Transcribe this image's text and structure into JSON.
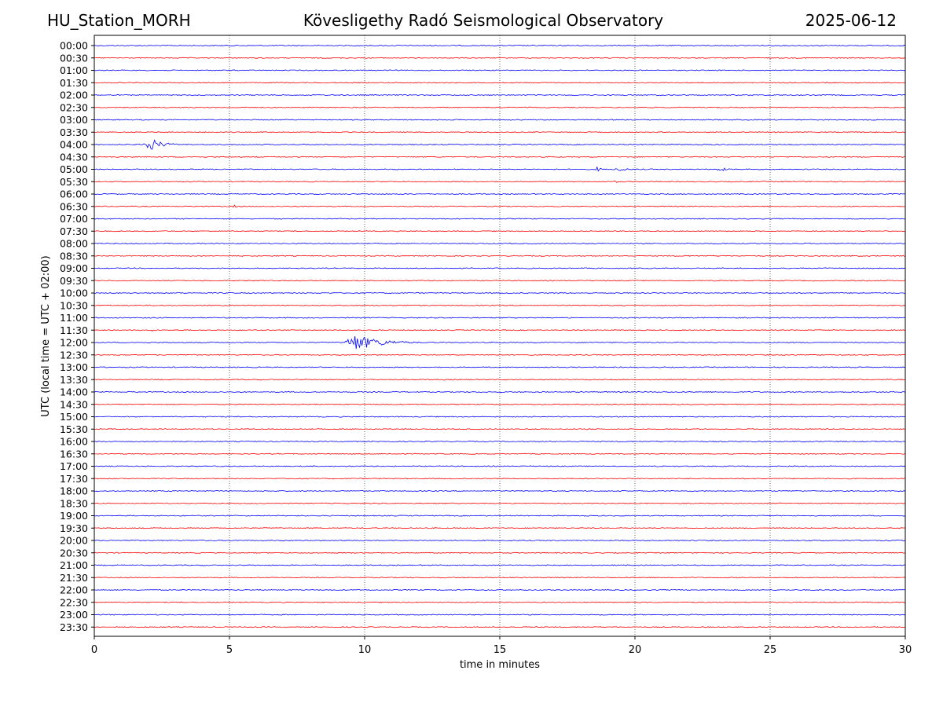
{
  "header": {
    "station": "HU_Station_MORH",
    "title": "Kövesligethy Radó Seismological Observatory",
    "date": "2025-06-12"
  },
  "chart_data": {
    "type": "line",
    "subtype": "helicorder",
    "xlabel": "time in minutes",
    "ylabel": "UTC (local time = UTC + 02:00)",
    "xlim": [
      0,
      30
    ],
    "x_ticks": [
      "0",
      "5",
      "10",
      "15",
      "20",
      "25",
      "30"
    ],
    "grid": "vertical dotted lines at 5, 10, 15, 20, 25 minutes",
    "rows": [
      "00:00",
      "00:30",
      "01:00",
      "01:30",
      "02:00",
      "02:30",
      "03:00",
      "03:30",
      "04:00",
      "04:30",
      "05:00",
      "05:30",
      "06:00",
      "06:30",
      "07:00",
      "07:30",
      "08:00",
      "08:30",
      "09:00",
      "09:30",
      "10:00",
      "10:30",
      "11:00",
      "11:30",
      "12:00",
      "12:30",
      "13:00",
      "13:30",
      "14:00",
      "14:30",
      "15:00",
      "15:30",
      "16:00",
      "16:30",
      "17:00",
      "17:30",
      "18:00",
      "18:30",
      "19:00",
      "19:30",
      "20:00",
      "20:30",
      "21:00",
      "21:30",
      "22:00",
      "22:30",
      "23:00",
      "23:30"
    ],
    "trace_colors": [
      "#0000ff",
      "#ff0000"
    ],
    "trace_color_pattern": "alternating, starting with blue at 00:00",
    "events": [
      {
        "row": "04:00",
        "start_min": 1.8,
        "end_min": 3.2,
        "peak_amplitude": 3.0
      },
      {
        "row": "05:00",
        "start_min": 18.5,
        "end_min": 19.0,
        "peak_amplitude": 1.2
      },
      {
        "row": "05:00",
        "start_min": 19.2,
        "end_min": 20.0,
        "peak_amplitude": 1.4
      },
      {
        "row": "05:00",
        "start_min": 23.0,
        "end_min": 23.8,
        "peak_amplitude": 1.0
      },
      {
        "row": "05:30",
        "start_min": 19.2,
        "end_min": 19.6,
        "peak_amplitude": 0.6
      },
      {
        "row": "06:30",
        "start_min": 5.1,
        "end_min": 5.6,
        "peak_amplitude": 0.6
      },
      {
        "row": "11:30",
        "start_min": 2.1,
        "end_min": 2.4,
        "peak_amplitude": 0.5
      },
      {
        "row": "12:00",
        "start_min": 9.2,
        "end_min": 12.0,
        "peak_amplitude": 3.5
      },
      {
        "row": "22:30",
        "start_min": 28.8,
        "end_min": 30.0,
        "peak_amplitude": 0.3
      },
      {
        "row": "23:00",
        "start_min": 0.6,
        "end_min": 1.1,
        "peak_amplitude": 0.5
      }
    ]
  }
}
